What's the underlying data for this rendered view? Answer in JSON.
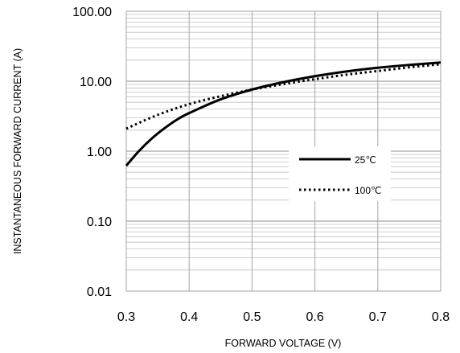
{
  "chart_data": {
    "type": "line",
    "title": "",
    "xlabel": "FORWARD VOLTAGE (V)",
    "ylabel": "INSTANTANEOUS FORWARD CURRENT (A)",
    "x_ticks": [
      "0.3",
      "0.4",
      "0.5",
      "0.6",
      "0.7",
      "0.8"
    ],
    "y_ticks": [
      "0.01",
      "0.10",
      "1.00",
      "10.00",
      "100.00"
    ],
    "xlim": [
      0.3,
      0.8
    ],
    "ylim": [
      0.01,
      100
    ],
    "y_scale": "log",
    "grid": true,
    "legend_position": "center-right",
    "series": [
      {
        "name": "25℃",
        "style": "solid",
        "color": "#000000",
        "x": [
          0.3,
          0.32,
          0.34,
          0.36,
          0.38,
          0.4,
          0.45,
          0.5,
          0.55,
          0.6,
          0.65,
          0.7,
          0.75,
          0.8
        ],
        "y": [
          0.62,
          1.0,
          1.5,
          2.1,
          2.8,
          3.5,
          5.5,
          7.6,
          9.7,
          11.8,
          13.8,
          15.6,
          17.1,
          18.5
        ]
      },
      {
        "name": "100℃",
        "style": "dotted",
        "color": "#000000",
        "x": [
          0.3,
          0.35,
          0.4,
          0.45,
          0.5,
          0.55,
          0.6,
          0.65,
          0.7,
          0.75,
          0.8
        ],
        "y": [
          2.1,
          3.3,
          4.7,
          6.1,
          7.6,
          9.1,
          10.7,
          12.4,
          14.0,
          15.8,
          17.5
        ]
      }
    ]
  }
}
